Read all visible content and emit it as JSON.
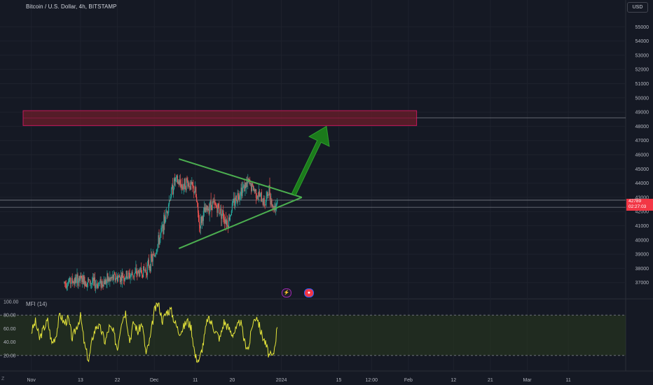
{
  "header": {
    "title": "Bitcoin / U.S. Dollar, 4h, BITSTAMP",
    "currency_button": "USD"
  },
  "price_tag": {
    "price": "42789",
    "countdown": "02:27:03"
  },
  "indicator": {
    "title": "MFI (14)"
  },
  "badges": {
    "event_icon": "⚡",
    "flag_icon": "flag-icon"
  },
  "colors": {
    "background": "#151924",
    "up_candle": "#26a69a",
    "down_candle": "#ef5350",
    "triangle": "#4caf50",
    "arrow": "#1b7a1b",
    "zone_fill": "#6b1d2a",
    "zone_border": "#c2185b",
    "mfi_line": "#e4e43a",
    "mfi_band": "#2a3a1e"
  },
  "chart_data": [
    {
      "type": "candlestick",
      "title": "Bitcoin / U.S. Dollar, 4h, BITSTAMP",
      "ylim": [
        36000,
        56000
      ],
      "y_ticks": [
        "55000",
        "54000",
        "53000",
        "52000",
        "51000",
        "50000",
        "49000",
        "48000",
        "47000",
        "46000",
        "45000",
        "44000",
        "43000",
        "42000",
        "41000",
        "40000",
        "39000",
        "38000",
        "37000"
      ],
      "x_ticks": [
        "Nov",
        "13",
        "22",
        "Dec",
        "11",
        "20",
        "2024",
        "15",
        "12:00",
        "Feb",
        "12",
        "21",
        "Mar",
        "11"
      ],
      "x_tick_days": [
        0,
        12,
        21,
        30,
        40,
        49,
        61,
        75,
        83,
        92,
        103,
        112,
        121,
        131
      ],
      "x_range_days": [
        -2,
        145
      ],
      "last_price": 42789,
      "close_path": [
        {
          "day": 8,
          "price": 37000
        },
        {
          "day": 12,
          "price": 37200
        },
        {
          "day": 16,
          "price": 36900
        },
        {
          "day": 20,
          "price": 37300
        },
        {
          "day": 24,
          "price": 37500
        },
        {
          "day": 28,
          "price": 37900
        },
        {
          "day": 30,
          "price": 38900
        },
        {
          "day": 32,
          "price": 40800
        },
        {
          "day": 34,
          "price": 43200
        },
        {
          "day": 35,
          "price": 44200
        },
        {
          "day": 37,
          "price": 43800
        },
        {
          "day": 38,
          "price": 44100
        },
        {
          "day": 40,
          "price": 43400
        },
        {
          "day": 41,
          "price": 41000
        },
        {
          "day": 42,
          "price": 41800
        },
        {
          "day": 44,
          "price": 42600
        },
        {
          "day": 46,
          "price": 42100
        },
        {
          "day": 48,
          "price": 41200
        },
        {
          "day": 49,
          "price": 42400
        },
        {
          "day": 51,
          "price": 43500
        },
        {
          "day": 53,
          "price": 44000
        },
        {
          "day": 55,
          "price": 43300
        },
        {
          "day": 57,
          "price": 42600
        },
        {
          "day": 58,
          "price": 43500
        },
        {
          "day": 59,
          "price": 42200
        },
        {
          "day": 60,
          "price": 42789
        }
      ],
      "resistance_zone": {
        "low": 48050,
        "high": 49100,
        "day_start": -2,
        "day_end": 94
      },
      "horizontal_lines": [
        48600,
        42800,
        42300
      ],
      "triangle": {
        "upper": [
          {
            "day": 36,
            "price": 45700
          },
          {
            "day": 66,
            "price": 43000
          }
        ],
        "lower": [
          {
            "day": 36,
            "price": 39400
          },
          {
            "day": 66,
            "price": 43000
          }
        ]
      },
      "arrow": {
        "from": {
          "day": 64,
          "price": 43200
        },
        "to": {
          "day": 72,
          "price": 48000
        }
      }
    },
    {
      "type": "line",
      "title": "MFI (14)",
      "ylim": [
        0,
        100
      ],
      "y_ticks": [
        "100.00",
        "80.00",
        "60.00",
        "40.00",
        "20.00"
      ],
      "band": [
        20,
        80
      ],
      "x_range_days": [
        -2,
        145
      ],
      "x": [
        0,
        1,
        2,
        3,
        4,
        5,
        6,
        7,
        8,
        9,
        10,
        11,
        12,
        13,
        14,
        15,
        16,
        17,
        18,
        19,
        20,
        21,
        22,
        23,
        24,
        25,
        26,
        27,
        28,
        29,
        30,
        31,
        32,
        33,
        34,
        35,
        36,
        37,
        38,
        39,
        40,
        41,
        42,
        43,
        44,
        45,
        46,
        47,
        48,
        49,
        50,
        51,
        52,
        53,
        54,
        55,
        56,
        57,
        58,
        59,
        60
      ],
      "values": [
        55,
        70,
        45,
        60,
        72,
        38,
        50,
        82,
        68,
        75,
        45,
        62,
        78,
        35,
        12,
        48,
        66,
        58,
        40,
        62,
        55,
        30,
        72,
        85,
        42,
        70,
        55,
        68,
        22,
        45,
        86,
        98,
        72,
        85,
        88,
        70,
        55,
        60,
        72,
        62,
        18,
        12,
        40,
        75,
        68,
        55,
        45,
        70,
        62,
        52,
        58,
        72,
        40,
        30,
        68,
        80,
        55,
        40,
        20,
        18,
        62
      ]
    }
  ]
}
